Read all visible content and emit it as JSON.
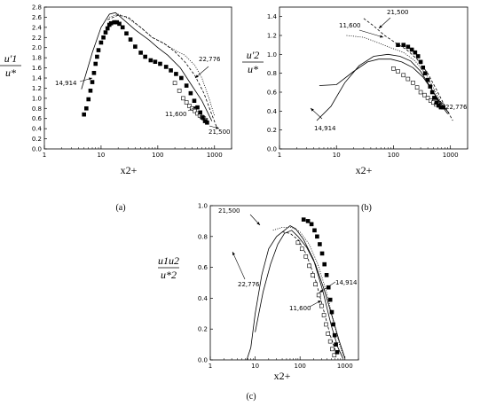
{
  "chart_data": [
    {
      "type": "line",
      "x_scale": "log",
      "x_ticks": [
        "1",
        "10",
        "100",
        "1000"
      ],
      "y_ticks": [
        "0.0",
        "0.2",
        "0.4",
        "0.6",
        "0.8",
        "1.0",
        "1.2",
        "1.4",
        "1.6",
        "1.8",
        "2.0",
        "2.2",
        "2.4",
        "2.6",
        "2.8"
      ],
      "xlim": [
        1,
        2000
      ],
      "ylim": [
        0,
        2.8
      ],
      "ylabel_num": "u'1",
      "ylabel_den": "u*",
      "xlabel": "x2+",
      "caption": "(a)",
      "series": [
        {
          "name": "14,914",
          "style": "solid",
          "points": [
            [
              4.5,
              1.18
            ],
            [
              7,
              1.9
            ],
            [
              10,
              2.4
            ],
            [
              14,
              2.66
            ],
            [
              18,
              2.69
            ],
            [
              25,
              2.55
            ],
            [
              40,
              2.35
            ],
            [
              70,
              2.15
            ],
            [
              100,
              2.0
            ],
            [
              150,
              1.85
            ],
            [
              250,
              1.6
            ],
            [
              400,
              1.25
            ],
            [
              600,
              0.95
            ],
            [
              900,
              0.55
            ]
          ]
        },
        {
          "name": "22,776",
          "style": "dotted",
          "points": [
            [
              14,
              2.6
            ],
            [
              20,
              2.66
            ],
            [
              30,
              2.58
            ],
            [
              50,
              2.4
            ],
            [
              80,
              2.2
            ],
            [
              120,
              2.1
            ],
            [
              200,
              1.95
            ],
            [
              300,
              1.85
            ],
            [
              450,
              1.65
            ],
            [
              600,
              1.4
            ],
            [
              800,
              1.0
            ],
            [
              1000,
              0.65
            ]
          ]
        },
        {
          "name": "21,500",
          "style": "dashed",
          "points": [
            [
              13,
              2.55
            ],
            [
              20,
              2.64
            ],
            [
              30,
              2.6
            ],
            [
              50,
              2.4
            ],
            [
              80,
              2.2
            ],
            [
              130,
              2.08
            ],
            [
              200,
              1.92
            ],
            [
              300,
              1.72
            ],
            [
              450,
              1.45
            ],
            [
              650,
              1.1
            ],
            [
              850,
              0.75
            ],
            [
              1100,
              0.42
            ]
          ]
        },
        {
          "name": "11,600",
          "style": "open-square",
          "points": [
            [
              200,
              1.3
            ],
            [
              240,
              1.15
            ],
            [
              280,
              1.0
            ],
            [
              320,
              0.92
            ],
            [
              360,
              0.85
            ],
            [
              400,
              0.8
            ],
            [
              450,
              0.75
            ],
            [
              500,
              0.7
            ],
            [
              550,
              0.66
            ],
            [
              600,
              0.63
            ],
            [
              650,
              0.6
            ],
            [
              700,
              0.57
            ]
          ]
        },
        {
          "name": "",
          "style": "filled-square",
          "points": [
            [
              5,
              0.68
            ],
            [
              5.5,
              0.8
            ],
            [
              6,
              0.98
            ],
            [
              6.5,
              1.15
            ],
            [
              7,
              1.32
            ],
            [
              7.5,
              1.5
            ],
            [
              8,
              1.68
            ],
            [
              8.5,
              1.82
            ],
            [
              9,
              1.95
            ],
            [
              10,
              2.1
            ],
            [
              11,
              2.2
            ],
            [
              12,
              2.3
            ],
            [
              13,
              2.38
            ],
            [
              14,
              2.45
            ],
            [
              15,
              2.48
            ],
            [
              17,
              2.5
            ],
            [
              19,
              2.5
            ],
            [
              21,
              2.47
            ],
            [
              24,
              2.4
            ],
            [
              28,
              2.28
            ],
            [
              33,
              2.16
            ],
            [
              40,
              2.02
            ],
            [
              50,
              1.9
            ],
            [
              60,
              1.82
            ],
            [
              75,
              1.75
            ],
            [
              90,
              1.72
            ],
            [
              110,
              1.68
            ],
            [
              140,
              1.62
            ],
            [
              170,
              1.55
            ],
            [
              210,
              1.48
            ],
            [
              260,
              1.4
            ],
            [
              320,
              1.25
            ],
            [
              380,
              1.1
            ],
            [
              440,
              0.95
            ],
            [
              500,
              0.82
            ],
            [
              560,
              0.72
            ],
            [
              620,
              0.62
            ],
            [
              680,
              0.55
            ],
            [
              740,
              0.52
            ]
          ]
        }
      ],
      "annotations": [
        "14,914",
        "22,776",
        "11,600",
        "21,500"
      ]
    },
    {
      "type": "line",
      "x_scale": "log",
      "x_ticks": [
        "1",
        "10",
        "100",
        "1000"
      ],
      "y_ticks": [
        "0.0",
        "0.2",
        "0.4",
        "0.6",
        "0.8",
        "1.0",
        "1.2",
        "1.4"
      ],
      "xlim": [
        1,
        2000
      ],
      "ylim": [
        0,
        1.5
      ],
      "ylabel_num": "u'2",
      "ylabel_den": "u*",
      "xlabel": "x2+",
      "caption": "(b)",
      "series": [
        {
          "name": "14,914",
          "style": "solid",
          "points": [
            [
              4.5,
              0.3
            ],
            [
              8,
              0.45
            ],
            [
              14,
              0.7
            ],
            [
              25,
              0.88
            ],
            [
              45,
              0.98
            ],
            [
              80,
              1.0
            ],
            [
              130,
              0.98
            ],
            [
              200,
              0.93
            ],
            [
              300,
              0.82
            ],
            [
              450,
              0.65
            ],
            [
              650,
              0.48
            ],
            [
              900,
              0.37
            ]
          ]
        },
        {
          "name": "21,500",
          "style": "dashed",
          "points": [
            [
              30,
              1.38
            ],
            [
              45,
              1.3
            ],
            [
              70,
              1.2
            ],
            [
              110,
              1.12
            ],
            [
              170,
              1.05
            ],
            [
              260,
              0.95
            ],
            [
              400,
              0.8
            ],
            [
              600,
              0.6
            ],
            [
              850,
              0.42
            ],
            [
              1100,
              0.3
            ]
          ]
        },
        {
          "name": "11,600",
          "style": "dotted",
          "points": [
            [
              15,
              1.2
            ],
            [
              30,
              1.18
            ],
            [
              55,
              1.12
            ],
            [
              90,
              1.07
            ],
            [
              150,
              1.02
            ],
            [
              240,
              0.93
            ],
            [
              380,
              0.78
            ],
            [
              550,
              0.6
            ],
            [
              800,
              0.42
            ]
          ]
        },
        {
          "name": "22,776",
          "style": "solid",
          "points": [
            [
              5,
              0.67
            ],
            [
              10,
              0.68
            ],
            [
              20,
              0.82
            ],
            [
              35,
              0.92
            ],
            [
              55,
              0.95
            ],
            [
              90,
              0.95
            ],
            [
              140,
              0.92
            ],
            [
              220,
              0.86
            ],
            [
              330,
              0.76
            ],
            [
              480,
              0.62
            ],
            [
              700,
              0.47
            ],
            [
              950,
              0.38
            ]
          ]
        },
        {
          "name": "",
          "style": "open-square",
          "points": [
            [
              100,
              0.85
            ],
            [
              120,
              0.82
            ],
            [
              150,
              0.78
            ],
            [
              180,
              0.74
            ],
            [
              220,
              0.7
            ],
            [
              260,
              0.65
            ],
            [
              300,
              0.6
            ],
            [
              350,
              0.57
            ],
            [
              400,
              0.54
            ],
            [
              450,
              0.51
            ],
            [
              500,
              0.49
            ],
            [
              560,
              0.47
            ],
            [
              620,
              0.46
            ],
            [
              680,
              0.45
            ]
          ]
        },
        {
          "name": "",
          "style": "filled-square",
          "points": [
            [
              120,
              1.1
            ],
            [
              150,
              1.1
            ],
            [
              180,
              1.08
            ],
            [
              210,
              1.05
            ],
            [
              240,
              1.02
            ],
            [
              270,
              0.98
            ],
            [
              300,
              0.92
            ],
            [
              330,
              0.86
            ],
            [
              360,
              0.8
            ],
            [
              400,
              0.73
            ],
            [
              440,
              0.66
            ],
            [
              480,
              0.6
            ],
            [
              520,
              0.54
            ],
            [
              570,
              0.49
            ],
            [
              620,
              0.46
            ],
            [
              680,
              0.44
            ],
            [
              750,
              0.44
            ]
          ]
        }
      ],
      "annotations": [
        "21,500",
        "11,600",
        "22,776",
        "14,914"
      ]
    },
    {
      "type": "line",
      "x_scale": "log",
      "x_ticks": [
        "1",
        "10",
        "100",
        "1000"
      ],
      "y_ticks": [
        "0.0",
        "0.2",
        "0.4",
        "0.6",
        "0.8",
        "1.0"
      ],
      "xlim": [
        1,
        2000
      ],
      "ylim": [
        0,
        1.0
      ],
      "ylabel_num": "u1u2",
      "ylabel_den": "u*2",
      "xlabel": "x2+",
      "caption": "(c)",
      "series": [
        {
          "name": "22,776",
          "style": "solid",
          "points": [
            [
              6.5,
              0.0
            ],
            [
              8,
              0.08
            ],
            [
              10,
              0.3
            ],
            [
              14,
              0.55
            ],
            [
              20,
              0.72
            ],
            [
              30,
              0.8
            ],
            [
              45,
              0.84
            ],
            [
              60,
              0.87
            ],
            [
              80,
              0.85
            ],
            [
              120,
              0.78
            ],
            [
              200,
              0.65
            ],
            [
              320,
              0.45
            ],
            [
              500,
              0.22
            ],
            [
              700,
              0.08
            ],
            [
              900,
              0.01
            ]
          ]
        },
        {
          "name": "14,914",
          "style": "solid",
          "points": [
            [
              10,
              0.18
            ],
            [
              15,
              0.44
            ],
            [
              22,
              0.62
            ],
            [
              32,
              0.75
            ],
            [
              45,
              0.82
            ],
            [
              65,
              0.84
            ],
            [
              90,
              0.8
            ],
            [
              140,
              0.73
            ],
            [
              220,
              0.62
            ],
            [
              350,
              0.45
            ],
            [
              520,
              0.28
            ],
            [
              750,
              0.12
            ],
            [
              1000,
              0.01
            ]
          ]
        },
        {
          "name": "21,500",
          "style": "dotted",
          "points": [
            [
              25,
              0.84
            ],
            [
              40,
              0.86
            ],
            [
              65,
              0.86
            ],
            [
              100,
              0.83
            ],
            [
              160,
              0.75
            ],
            [
              250,
              0.62
            ],
            [
              380,
              0.45
            ],
            [
              550,
              0.26
            ],
            [
              750,
              0.1
            ],
            [
              950,
              0.02
            ]
          ]
        },
        {
          "name": "11,600",
          "style": "dashed",
          "points": [
            [
              40,
              0.83
            ],
            [
              60,
              0.82
            ],
            [
              90,
              0.78
            ],
            [
              140,
              0.68
            ],
            [
              220,
              0.52
            ],
            [
              330,
              0.33
            ],
            [
              470,
              0.16
            ],
            [
              650,
              0.04
            ]
          ]
        },
        {
          "name": "",
          "style": "open-square",
          "points": [
            [
              90,
              0.76
            ],
            [
              110,
              0.72
            ],
            [
              135,
              0.67
            ],
            [
              160,
              0.61
            ],
            [
              190,
              0.55
            ],
            [
              220,
              0.49
            ],
            [
              260,
              0.42
            ],
            [
              300,
              0.35
            ],
            [
              340,
              0.29
            ],
            [
              380,
              0.23
            ],
            [
              420,
              0.17
            ],
            [
              470,
              0.12
            ],
            [
              520,
              0.07
            ],
            [
              580,
              0.03
            ]
          ]
        },
        {
          "name": "",
          "style": "filled-square",
          "points": [
            [
              120,
              0.91
            ],
            [
              150,
              0.9
            ],
            [
              180,
              0.88
            ],
            [
              210,
              0.84
            ],
            [
              240,
              0.8
            ],
            [
              275,
              0.75
            ],
            [
              310,
              0.69
            ],
            [
              350,
              0.62
            ],
            [
              390,
              0.55
            ],
            [
              430,
              0.47
            ],
            [
              470,
              0.39
            ],
            [
              510,
              0.31
            ],
            [
              550,
              0.23
            ],
            [
              590,
              0.16
            ],
            [
              630,
              0.1
            ],
            [
              670,
              0.05
            ]
          ]
        }
      ],
      "annotations": [
        "21,500",
        "22,776",
        "14,914",
        "11,600"
      ]
    }
  ]
}
